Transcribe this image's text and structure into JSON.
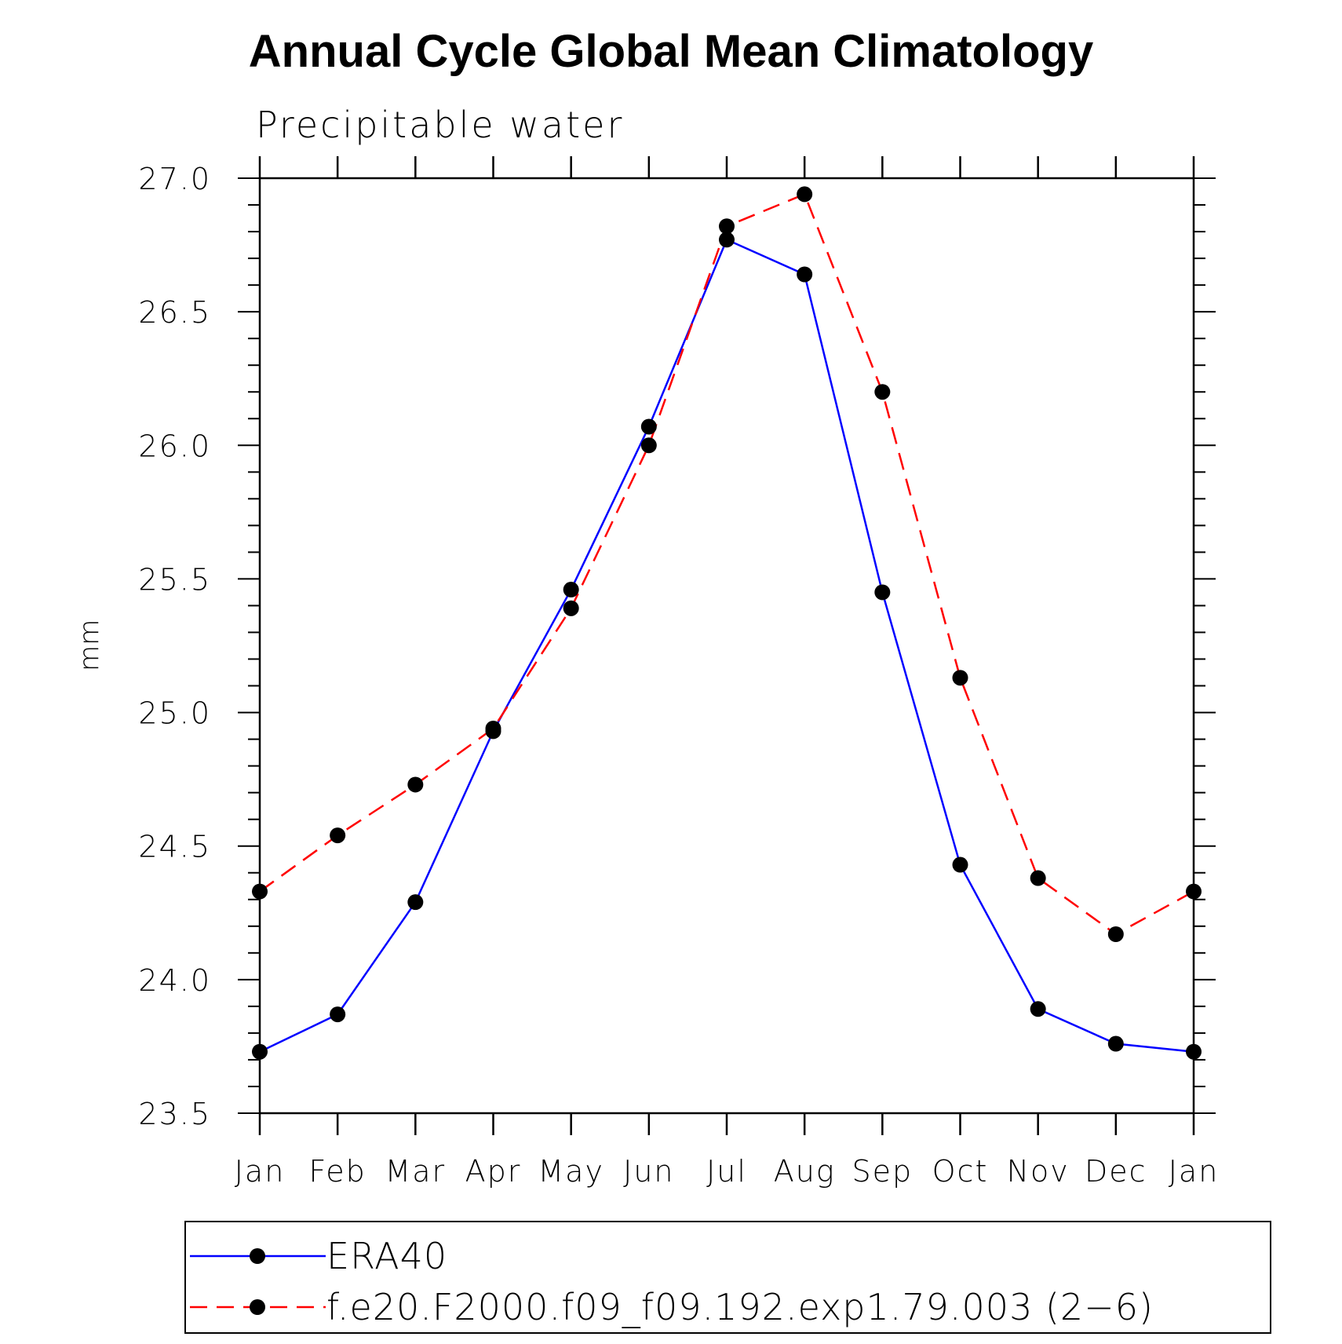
{
  "chart_data": {
    "type": "line",
    "title": "Annual Cycle Global Mean Climatology",
    "subtitle": "Precipitable water",
    "xlabel": "",
    "ylabel": "mm",
    "categories": [
      "Jan",
      "Feb",
      "Mar",
      "Apr",
      "May",
      "Jun",
      "Jul",
      "Aug",
      "Sep",
      "Oct",
      "Nov",
      "Dec",
      "Jan"
    ],
    "ylim": [
      23.5,
      27.0
    ],
    "yticks": [
      "23.5",
      "24.0",
      "24.5",
      "25.0",
      "25.5",
      "26.0",
      "26.5",
      "27.0"
    ],
    "ytick_values": [
      23.5,
      24.0,
      24.5,
      25.0,
      25.5,
      26.0,
      26.5,
      27.0
    ],
    "y_minor_step": 0.1,
    "grid": false,
    "legend_position": "bottom",
    "series": [
      {
        "name": "ERA40",
        "color": "#0000ff",
        "style": "solid",
        "marker_color": "#000000",
        "values": [
          23.73,
          23.87,
          24.29,
          24.93,
          25.46,
          26.07,
          26.77,
          26.64,
          25.45,
          24.43,
          23.89,
          23.76,
          23.73
        ]
      },
      {
        "name": "f.e20.F2000.f09_f09.192.exp1.79.003 (2−6)",
        "color": "#ff0000",
        "style": "dashed",
        "marker_color": "#000000",
        "values": [
          24.33,
          24.54,
          24.73,
          24.94,
          25.39,
          26.0,
          26.82,
          26.94,
          26.2,
          25.13,
          24.38,
          24.17,
          24.33
        ]
      }
    ]
  }
}
